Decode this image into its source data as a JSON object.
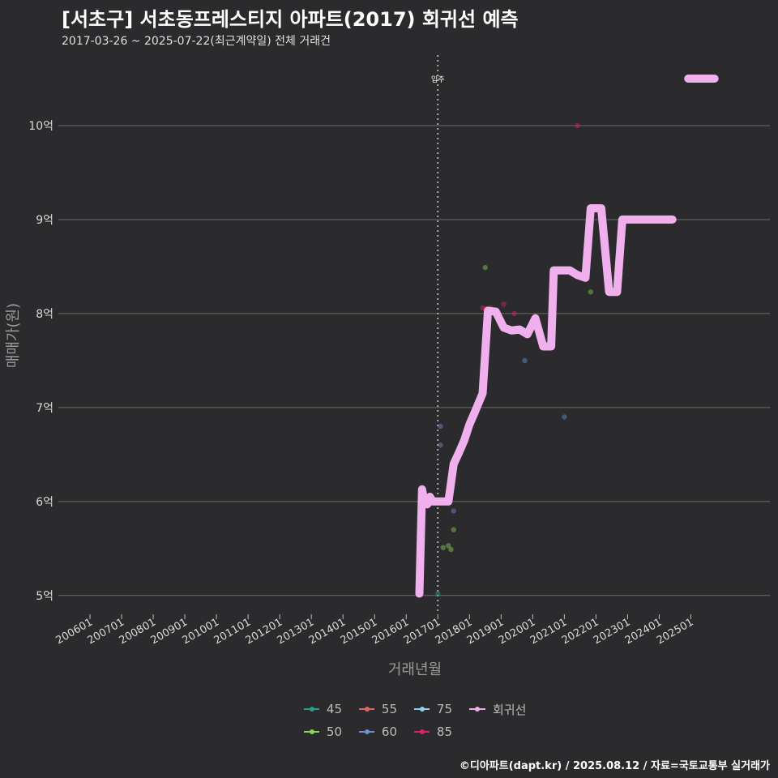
{
  "header": {
    "title": "[서초구] 서초동프레스티지 아파트(2017) 회귀선 예측",
    "subtitle": "2017-03-26 ~ 2025-07-22(최근계약일) 전체 거래건"
  },
  "caption": "©디아파트(dapt.kr) / 2025.08.12 / 자료=국토교통부 실거래가",
  "chart_data": {
    "type": "scatter",
    "xlabel": "거래년월",
    "ylabel": "매매가(원)",
    "x_ticks": [
      "200601",
      "200701",
      "200801",
      "200901",
      "201001",
      "201101",
      "201201",
      "201301",
      "201401",
      "201501",
      "201601",
      "201701",
      "201801",
      "201901",
      "202001",
      "202101",
      "202201",
      "202301",
      "202401",
      "202501"
    ],
    "xlim": [
      "2005-01",
      "2027-07"
    ],
    "y_ticks": [
      {
        "value": 5,
        "label": "5억"
      },
      {
        "value": 6,
        "label": "6억"
      },
      {
        "value": 7,
        "label": "7억"
      },
      {
        "value": 8,
        "label": "8억"
      },
      {
        "value": 9,
        "label": "9억"
      },
      {
        "value": 10,
        "label": "10억"
      }
    ],
    "y_unit": "억원",
    "ylim": [
      4.8,
      10.75
    ],
    "grid": true,
    "legend_position": "bottom",
    "vline": {
      "x": "2017-01",
      "label": "입주"
    },
    "series": [
      {
        "name": "45",
        "color": "#2a9d8f",
        "points": [
          [
            "2017-01",
            5.02
          ]
        ]
      },
      {
        "name": "50",
        "color": "#8bd35c",
        "points": [
          [
            "2017-03",
            5.51
          ],
          [
            "2017-05",
            5.53
          ],
          [
            "2017-06",
            5.49
          ],
          [
            "2017-07",
            5.7
          ],
          [
            "2018-07",
            8.49
          ],
          [
            "2021-11",
            8.23
          ]
        ]
      },
      {
        "name": "55",
        "color": "#e06666",
        "points": []
      },
      {
        "name": "60",
        "color": "#6e8fd6",
        "points": [
          [
            "2017-02",
            6.8
          ],
          [
            "2017-02",
            6.6
          ],
          [
            "2017-06",
            6.28
          ],
          [
            "2017-06",
            6.24
          ],
          [
            "2017-07",
            5.9
          ],
          [
            "2019-10",
            7.5
          ],
          [
            "2021-01",
            6.9
          ]
        ]
      },
      {
        "name": "75",
        "color": "#8fd3e8",
        "points": []
      },
      {
        "name": "85",
        "color": "#e0226b",
        "points": [
          [
            "2018-06",
            8.06
          ],
          [
            "2018-07",
            8.05
          ],
          [
            "2018-09",
            8.06
          ],
          [
            "2019-02",
            8.1
          ],
          [
            "2019-06",
            8.0
          ],
          [
            "2021-06",
            10.0
          ]
        ]
      },
      {
        "name": "회귀선",
        "color": "#f0b0ee",
        "line": [
          [
            "2016-06",
            5.02
          ],
          [
            "2016-07",
            6.13
          ],
          [
            "2016-08",
            5.98
          ],
          [
            "2016-09",
            5.97
          ],
          [
            "2016-10",
            6.05
          ],
          [
            "2016-11",
            6.0
          ],
          [
            "2017-05",
            6.0
          ],
          [
            "2017-07",
            6.4
          ],
          [
            "2017-09",
            6.52
          ],
          [
            "2017-11",
            6.65
          ],
          [
            "2018-01",
            6.82
          ],
          [
            "2018-03",
            6.95
          ],
          [
            "2018-06",
            7.15
          ],
          [
            "2018-08",
            8.03
          ],
          [
            "2018-11",
            8.02
          ],
          [
            "2019-02",
            7.85
          ],
          [
            "2019-05",
            7.82
          ],
          [
            "2019-08",
            7.83
          ],
          [
            "2019-11",
            7.78
          ],
          [
            "2020-02",
            7.95
          ],
          [
            "2020-05",
            7.65
          ],
          [
            "2020-08",
            7.65
          ],
          [
            "2020-09",
            8.46
          ],
          [
            "2021-03",
            8.46
          ],
          [
            "2021-06",
            8.41
          ],
          [
            "2021-09",
            8.38
          ],
          [
            "2021-11",
            9.12
          ],
          [
            "2022-03",
            9.12
          ],
          [
            "2022-06",
            8.23
          ],
          [
            "2022-09",
            8.23
          ],
          [
            "2022-11",
            9.0
          ],
          [
            "2024-06",
            9.0
          ]
        ]
      },
      {
        "name": "회귀선",
        "color": "#f0b0ee",
        "line": [
          [
            "2024-12",
            10.5
          ],
          [
            "2025-10",
            10.5
          ]
        ]
      }
    ]
  },
  "legend": [
    {
      "label": "45",
      "color": "#2a9d8f"
    },
    {
      "label": "55",
      "color": "#e06666"
    },
    {
      "label": "75",
      "color": "#8fd3e8"
    },
    {
      "label": "회귀선",
      "color": "#f0b0ee"
    },
    {
      "label": "50",
      "color": "#8bd35c"
    },
    {
      "label": "60",
      "color": "#6e8fd6"
    },
    {
      "label": "85",
      "color": "#e0226b"
    }
  ]
}
